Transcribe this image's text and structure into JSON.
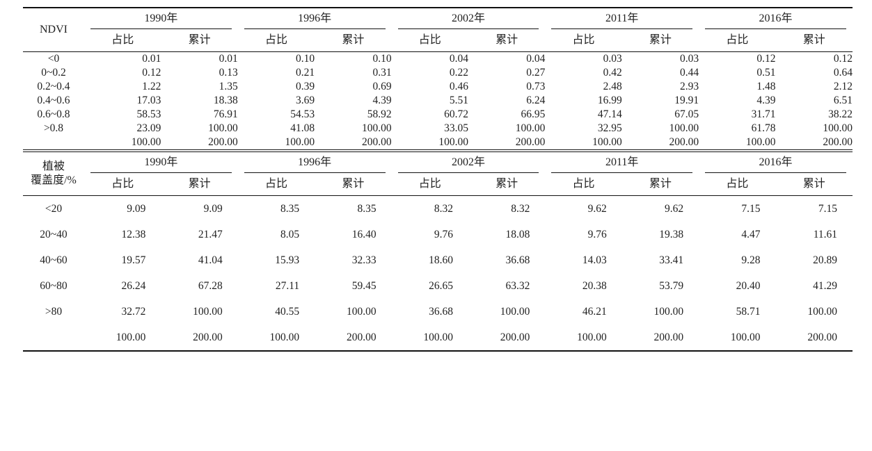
{
  "page": {
    "background": "#ffffff",
    "text_color": "#222222",
    "rule_color": "#111111"
  },
  "tables": [
    {
      "name": "ndvi-distribution",
      "row_header_lines": [
        "NDVI"
      ],
      "years": [
        "1990年",
        "1996年",
        "2002年",
        "2011年",
        "2016年"
      ],
      "sub_headers": [
        "占比",
        "累计"
      ],
      "rows": [
        {
          "label": "<0",
          "cells": [
            "0.01",
            "0.01",
            "0.10",
            "0.10",
            "0.04",
            "0.04",
            "0.03",
            "0.03",
            "0.12",
            "0.12"
          ]
        },
        {
          "label": "0~0.2",
          "cells": [
            "0.12",
            "0.13",
            "0.21",
            "0.31",
            "0.22",
            "0.27",
            "0.42",
            "0.44",
            "0.51",
            "0.64"
          ]
        },
        {
          "label": "0.2~0.4",
          "cells": [
            "1.22",
            "1.35",
            "0.39",
            "0.69",
            "0.46",
            "0.73",
            "2.48",
            "2.93",
            "1.48",
            "2.12"
          ]
        },
        {
          "label": "0.4~0.6",
          "cells": [
            "17.03",
            "18.38",
            "3.69",
            "4.39",
            "5.51",
            "6.24",
            "16.99",
            "19.91",
            "4.39",
            "6.51"
          ]
        },
        {
          "label": "0.6~0.8",
          "cells": [
            "58.53",
            "76.91",
            "54.53",
            "58.92",
            "60.72",
            "66.95",
            "47.14",
            "67.05",
            "31.71",
            "38.22"
          ]
        },
        {
          "label": ">0.8",
          "cells": [
            "23.09",
            "100.00",
            "41.08",
            "100.00",
            "33.05",
            "100.00",
            "32.95",
            "100.00",
            "61.78",
            "100.00"
          ]
        },
        {
          "label": "",
          "cells": [
            "100.00",
            "200.00",
            "100.00",
            "200.00",
            "100.00",
            "200.00",
            "100.00",
            "200.00",
            "100.00",
            "200.00"
          ]
        }
      ]
    },
    {
      "name": "vegetation-coverage",
      "row_header_lines": [
        "植被",
        "覆盖度/%"
      ],
      "years": [
        "1990年",
        "1996年",
        "2002年",
        "2011年",
        "2016年"
      ],
      "sub_headers": [
        "占比",
        "累计"
      ],
      "rows": [
        {
          "label": "<20",
          "cells": [
            "9.09",
            "9.09",
            "8.35",
            "8.35",
            "8.32",
            "8.32",
            "9.62",
            "9.62",
            "7.15",
            "7.15"
          ]
        },
        {
          "label": "20~40",
          "cells": [
            "12.38",
            "21.47",
            "8.05",
            "16.40",
            "9.76",
            "18.08",
            "9.76",
            "19.38",
            "4.47",
            "11.61"
          ]
        },
        {
          "label": "40~60",
          "cells": [
            "19.57",
            "41.04",
            "15.93",
            "32.33",
            "18.60",
            "36.68",
            "14.03",
            "33.41",
            "9.28",
            "20.89"
          ]
        },
        {
          "label": "60~80",
          "cells": [
            "26.24",
            "67.28",
            "27.11",
            "59.45",
            "26.65",
            "63.32",
            "20.38",
            "53.79",
            "20.40",
            "41.29"
          ]
        },
        {
          "label": ">80",
          "cells": [
            "32.72",
            "100.00",
            "40.55",
            "100.00",
            "36.68",
            "100.00",
            "46.21",
            "100.00",
            "58.71",
            "100.00"
          ]
        },
        {
          "label": "",
          "cells": [
            "100.00",
            "200.00",
            "100.00",
            "200.00",
            "100.00",
            "200.00",
            "100.00",
            "200.00",
            "100.00",
            "200.00"
          ]
        }
      ]
    }
  ]
}
